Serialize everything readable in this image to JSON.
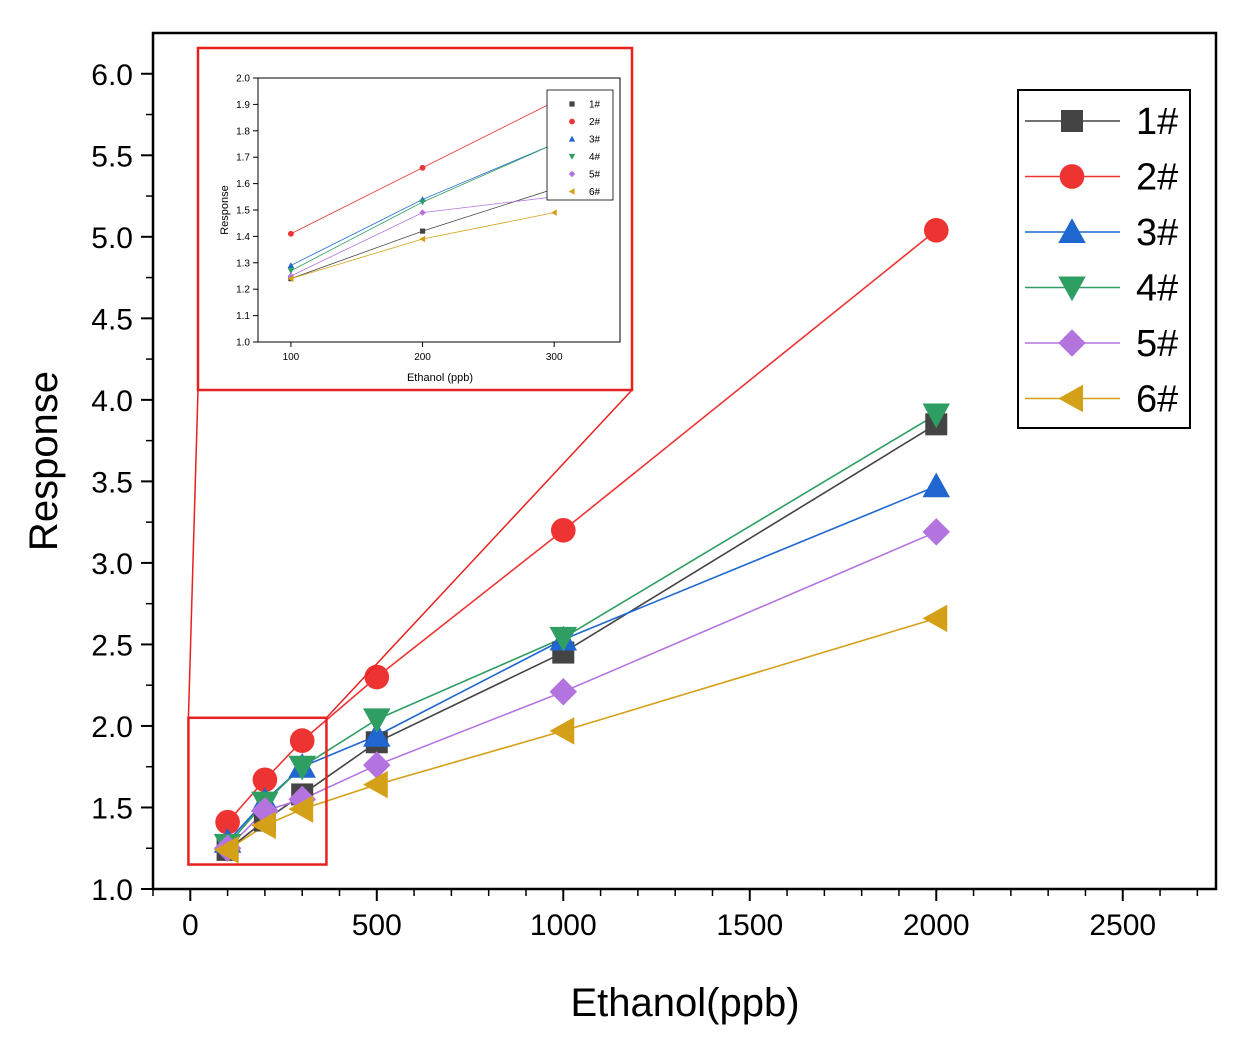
{
  "chart_data": [
    {
      "type": "line",
      "title": "",
      "xlabel": "Ethanol(ppb)",
      "ylabel": "Response",
      "xlim": [
        -100,
        2750
      ],
      "ylim": [
        1.0,
        6.25
      ],
      "xticks": [
        0,
        500,
        1000,
        1500,
        2000,
        2500
      ],
      "yticks": [
        1.0,
        1.5,
        2.0,
        2.5,
        3.0,
        3.5,
        4.0,
        4.5,
        5.0,
        5.5,
        6.0
      ],
      "xtick_labels": [
        "0",
        "500",
        "1000",
        "1500",
        "2000",
        "2500"
      ],
      "ytick_labels": [
        "1.0",
        "1.5",
        "2.0",
        "2.5",
        "3.0",
        "3.5",
        "4.0",
        "4.5",
        "5.0",
        "5.5",
        "6.0"
      ],
      "legend_position": "top-right",
      "x": [
        100,
        200,
        300,
        500,
        1000,
        2000
      ],
      "series": [
        {
          "name": "1#",
          "marker": "square",
          "color": "#444444",
          "values": [
            1.24,
            1.42,
            1.58,
            1.9,
            2.45,
            3.85
          ]
        },
        {
          "name": "2#",
          "marker": "circle",
          "color": "#ee3333",
          "values": [
            1.41,
            1.67,
            1.91,
            2.3,
            3.2,
            5.04
          ]
        },
        {
          "name": "3#",
          "marker": "triangle-up",
          "color": "#1f66d0",
          "values": [
            1.29,
            1.54,
            1.75,
            1.94,
            2.53,
            3.47
          ]
        },
        {
          "name": "4#",
          "marker": "triangle-down",
          "color": "#2e9e62",
          "values": [
            1.27,
            1.53,
            1.75,
            2.04,
            2.54,
            3.91
          ]
        },
        {
          "name": "5#",
          "marker": "diamond",
          "color": "#b474e0",
          "values": [
            1.25,
            1.48,
            1.55,
            1.76,
            2.21,
            3.19
          ]
        },
        {
          "name": "6#",
          "marker": "triangle-left",
          "color": "#d4a017",
          "values": [
            1.24,
            1.39,
            1.49,
            1.64,
            1.97,
            2.66
          ]
        }
      ]
    },
    {
      "type": "line",
      "title": "",
      "xlabel": "Ethanol (ppb)",
      "ylabel": "Response",
      "xlim": [
        75,
        350
      ],
      "ylim": [
        1.0,
        2.0
      ],
      "xticks": [
        100,
        200,
        300
      ],
      "yticks": [
        1.0,
        1.1,
        1.2,
        1.3,
        1.4,
        1.5,
        1.6,
        1.7,
        1.8,
        1.9,
        2.0
      ],
      "xtick_labels": [
        "100",
        "200",
        "300"
      ],
      "ytick_labels": [
        "1.0",
        "1.1",
        "1.2",
        "1.3",
        "1.4",
        "1.5",
        "1.6",
        "1.7",
        "1.8",
        "1.9",
        "2.0"
      ],
      "legend_position": "top-right",
      "x": [
        100,
        200,
        300
      ],
      "series": [
        {
          "name": "1#",
          "marker": "square",
          "color": "#444444",
          "values": [
            1.24,
            1.42,
            1.58
          ]
        },
        {
          "name": "2#",
          "marker": "circle",
          "color": "#ee3333",
          "values": [
            1.41,
            1.66,
            1.91
          ]
        },
        {
          "name": "3#",
          "marker": "triangle-up",
          "color": "#1f66d0",
          "values": [
            1.29,
            1.54,
            1.75
          ]
        },
        {
          "name": "4#",
          "marker": "triangle-down",
          "color": "#2e9e62",
          "values": [
            1.27,
            1.53,
            1.75
          ]
        },
        {
          "name": "5#",
          "marker": "diamond",
          "color": "#b474e0",
          "values": [
            1.25,
            1.49,
            1.55
          ]
        },
        {
          "name": "6#",
          "marker": "triangle-left",
          "color": "#d4a017",
          "values": [
            1.24,
            1.39,
            1.49
          ]
        }
      ]
    }
  ],
  "highlight": {
    "color": "#e8201e",
    "x_range": [
      -5,
      365
    ],
    "y_range": [
      1.15,
      2.05
    ]
  }
}
